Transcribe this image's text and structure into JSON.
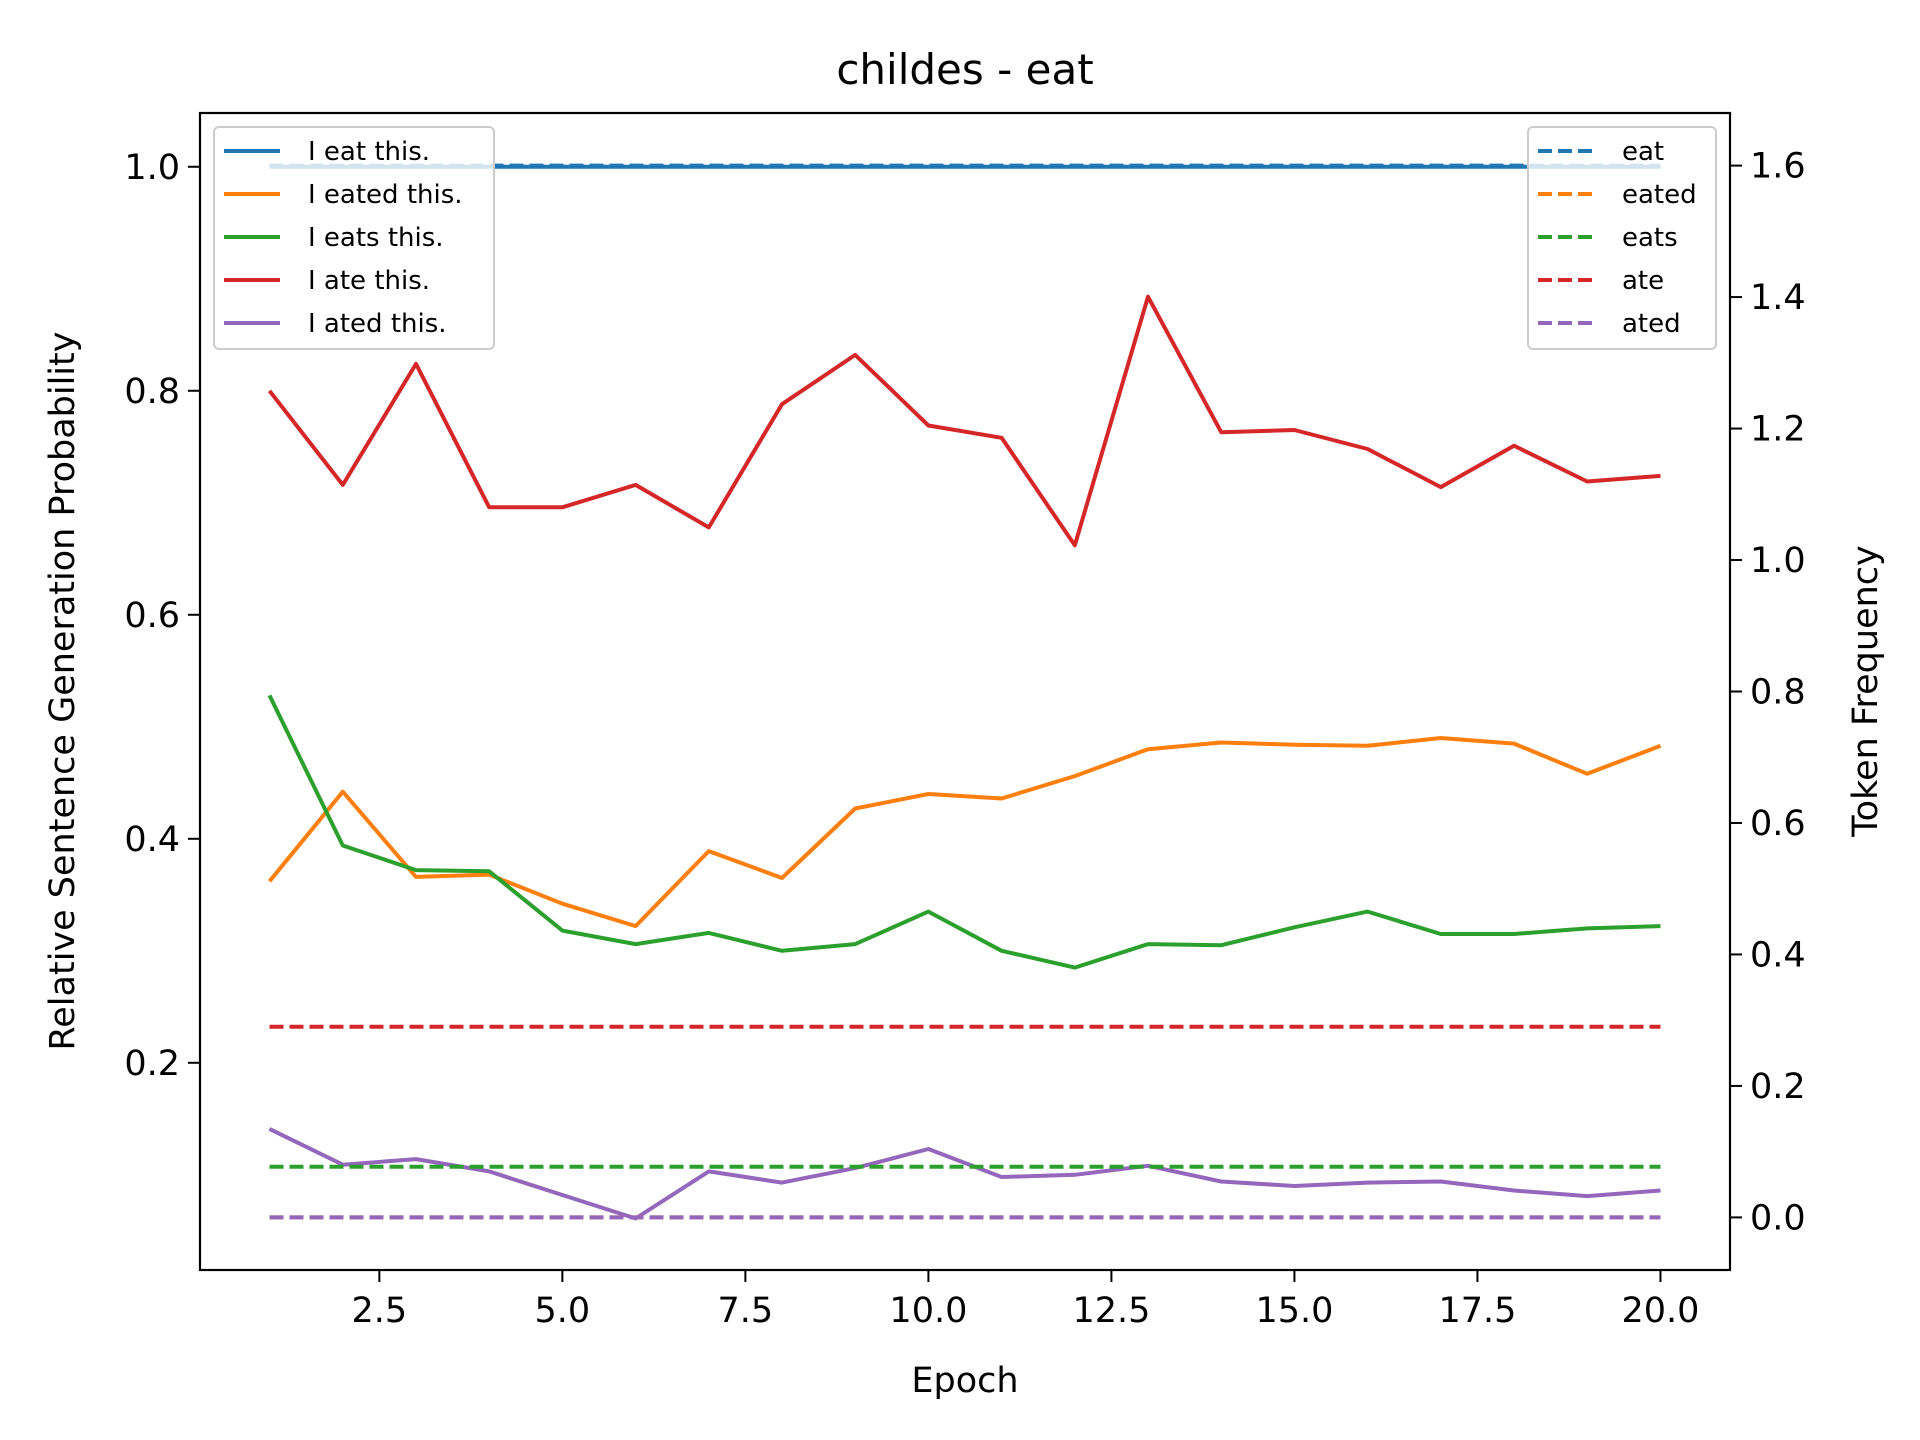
{
  "chart_data": {
    "type": "line",
    "title": "childes - eat",
    "xlabel": "Epoch",
    "ylabel": "Relative Sentence Generation Probability",
    "y2label": "Token Frequency",
    "xlim": [
      0.05,
      20.95
    ],
    "ylim": [
      0.015,
      1.048
    ],
    "y2lim": [
      -0.08,
      1.68
    ],
    "xticks": [
      "2.5",
      "5.0",
      "7.5",
      "10.0",
      "12.5",
      "15.0",
      "17.5",
      "20.0"
    ],
    "yticks": [
      "0.2",
      "0.4",
      "0.6",
      "0.8",
      "1.0"
    ],
    "y2ticks": [
      "0.0",
      "0.2",
      "0.4",
      "0.6",
      "0.8",
      "1.0",
      "1.2",
      "1.4",
      "1.6"
    ],
    "x": [
      1,
      2,
      3,
      4,
      5,
      6,
      7,
      8,
      9,
      10,
      11,
      12,
      13,
      14,
      15,
      16,
      17,
      18,
      19,
      20
    ],
    "series": [
      {
        "name": "I eat this.",
        "color": "#1f77b4",
        "axis": "left",
        "style": "solid",
        "values": [
          1,
          1,
          1,
          1,
          1,
          1,
          1,
          1,
          1,
          1,
          1,
          1,
          1,
          1,
          1,
          1,
          1,
          1,
          1,
          1
        ]
      },
      {
        "name": "I eated this.",
        "color": "#ff7f0e",
        "axis": "left",
        "style": "solid",
        "values": [
          0.362,
          0.442,
          0.366,
          0.368,
          0.342,
          0.322,
          0.389,
          0.365,
          0.427,
          0.44,
          0.436,
          0.456,
          0.48,
          0.486,
          0.484,
          0.483,
          0.49,
          0.485,
          0.458,
          0.483
        ]
      },
      {
        "name": "I eats this.",
        "color": "#2ca02c",
        "axis": "left",
        "style": "solid",
        "values": [
          0.528,
          0.394,
          0.372,
          0.371,
          0.318,
          0.306,
          0.316,
          0.3,
          0.306,
          0.335,
          0.3,
          0.285,
          0.306,
          0.305,
          0.321,
          0.335,
          0.315,
          0.315,
          0.32,
          0.322
        ]
      },
      {
        "name": "I ate this.",
        "color": "#d62728",
        "axis": "left",
        "style": "solid",
        "values": [
          0.8,
          0.716,
          0.824,
          0.696,
          0.696,
          0.716,
          0.678,
          0.788,
          0.832,
          0.769,
          0.758,
          0.662,
          0.884,
          0.763,
          0.765,
          0.748,
          0.714,
          0.751,
          0.719,
          0.724
        ]
      },
      {
        "name": "I ated this.",
        "color": "#9467bd",
        "axis": "left",
        "style": "solid",
        "values": [
          0.141,
          0.109,
          0.114,
          0.103,
          0.082,
          0.061,
          0.103,
          0.093,
          0.106,
          0.123,
          0.098,
          0.1,
          0.108,
          0.094,
          0.09,
          0.093,
          0.094,
          0.086,
          0.081,
          0.086
        ]
      },
      {
        "name": "eat",
        "color": "#1f77b4",
        "axis": "right",
        "style": "dashed",
        "values": [
          1.6,
          1.6,
          1.6,
          1.6,
          1.6,
          1.6,
          1.6,
          1.6,
          1.6,
          1.6,
          1.6,
          1.6,
          1.6,
          1.6,
          1.6,
          1.6,
          1.6,
          1.6,
          1.6,
          1.6
        ]
      },
      {
        "name": "eated",
        "color": "#ff7f0e",
        "axis": "right",
        "style": "dashed",
        "values": [
          0,
          0,
          0,
          0,
          0,
          0,
          0,
          0,
          0,
          0,
          0,
          0,
          0,
          0,
          0,
          0,
          0,
          0,
          0,
          0
        ]
      },
      {
        "name": "eats",
        "color": "#2ca02c",
        "axis": "right",
        "style": "dashed",
        "values": [
          0.077,
          0.077,
          0.077,
          0.077,
          0.077,
          0.077,
          0.077,
          0.077,
          0.077,
          0.077,
          0.077,
          0.077,
          0.077,
          0.077,
          0.077,
          0.077,
          0.077,
          0.077,
          0.077,
          0.077
        ]
      },
      {
        "name": "ate",
        "color": "#d62728",
        "axis": "right",
        "style": "dashed",
        "values": [
          0.29,
          0.29,
          0.29,
          0.29,
          0.29,
          0.29,
          0.29,
          0.29,
          0.29,
          0.29,
          0.29,
          0.29,
          0.29,
          0.29,
          0.29,
          0.29,
          0.29,
          0.29,
          0.29,
          0.29
        ]
      },
      {
        "name": "ated",
        "color": "#9467bd",
        "axis": "right",
        "style": "dashed",
        "values": [
          0,
          0,
          0,
          0,
          0,
          0,
          0,
          0,
          0,
          0,
          0,
          0,
          0,
          0,
          0,
          0,
          0,
          0,
          0,
          0
        ]
      }
    ],
    "legend_left": [
      "I eat this.",
      "I eated this.",
      "I eats this.",
      "I ate this.",
      "I ated this."
    ],
    "legend_right": [
      "eat",
      "eated",
      "eats",
      "ate",
      "ated"
    ],
    "legend_left_placement": "upper-left",
    "legend_right_placement": "upper-right",
    "grid": false
  }
}
